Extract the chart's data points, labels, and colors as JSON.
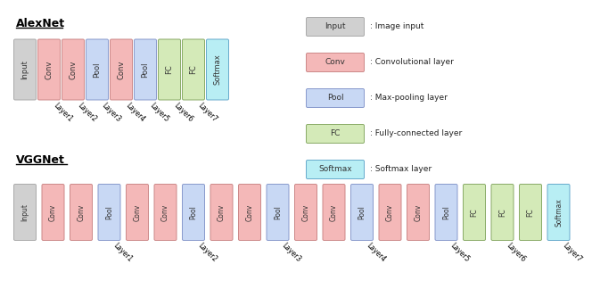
{
  "alexnet_layers": [
    {
      "label": "Input",
      "type": "input"
    },
    {
      "label": "Conv",
      "type": "conv"
    },
    {
      "label": "Conv",
      "type": "conv"
    },
    {
      "label": "Pool",
      "type": "pool"
    },
    {
      "label": "Conv",
      "type": "conv"
    },
    {
      "label": "Pool",
      "type": "pool"
    },
    {
      "label": "FC",
      "type": "fc"
    },
    {
      "label": "FC",
      "type": "fc"
    },
    {
      "label": "Softmax",
      "type": "softmax"
    }
  ],
  "alexnet_label_map": {
    "1": "Layer1",
    "2": "Layer2",
    "3": "Layer3",
    "4": "Layer4",
    "5": "Layer5",
    "6": "Layer6",
    "7": "Layer7"
  },
  "vggnet_layers": [
    {
      "label": "Input",
      "type": "input"
    },
    {
      "label": "Conv",
      "type": "conv"
    },
    {
      "label": "Conv",
      "type": "conv"
    },
    {
      "label": "Pool",
      "type": "pool"
    },
    {
      "label": "Conv",
      "type": "conv"
    },
    {
      "label": "Conv",
      "type": "conv"
    },
    {
      "label": "Pool",
      "type": "pool"
    },
    {
      "label": "Conv",
      "type": "conv"
    },
    {
      "label": "Conv",
      "type": "conv"
    },
    {
      "label": "Pool",
      "type": "pool"
    },
    {
      "label": "Conv",
      "type": "conv"
    },
    {
      "label": "Conv",
      "type": "conv"
    },
    {
      "label": "Pool",
      "type": "pool"
    },
    {
      "label": "Conv",
      "type": "conv"
    },
    {
      "label": "Conv",
      "type": "conv"
    },
    {
      "label": "Pool",
      "type": "pool"
    },
    {
      "label": "FC",
      "type": "fc"
    },
    {
      "label": "FC",
      "type": "fc"
    },
    {
      "label": "FC",
      "type": "fc"
    },
    {
      "label": "Softmax",
      "type": "softmax"
    }
  ],
  "vggnet_label_map": {
    "3": "Layer1",
    "6": "Layer2",
    "9": "Layer3",
    "12": "Layer4",
    "15": "Layer5",
    "17": "Layer6",
    "19": "Layer7"
  },
  "colors": {
    "input": {
      "face": "#d0d0d0",
      "edge": "#aaaaaa"
    },
    "conv": {
      "face": "#f4b8b8",
      "edge": "#cc8888"
    },
    "pool": {
      "face": "#c8d8f4",
      "edge": "#8899cc"
    },
    "fc": {
      "face": "#d4eab8",
      "edge": "#88aa66"
    },
    "softmax": {
      "face": "#b8eef4",
      "edge": "#66aacc"
    }
  },
  "legend_items": [
    {
      "label": "Input",
      "type": "input",
      "desc": ": Image input"
    },
    {
      "label": "Conv",
      "type": "conv",
      "desc": ": Convolutional layer"
    },
    {
      "label": "Pool",
      "type": "pool",
      "desc": ": Max-pooling layer"
    },
    {
      "label": "FC",
      "type": "fc",
      "desc": ": Fully-connected layer"
    },
    {
      "label": "Softmax",
      "type": "softmax",
      "desc": ": Softmax layer"
    }
  ],
  "alexnet_title": "AlexNet",
  "vggnet_title": "VGGNet"
}
